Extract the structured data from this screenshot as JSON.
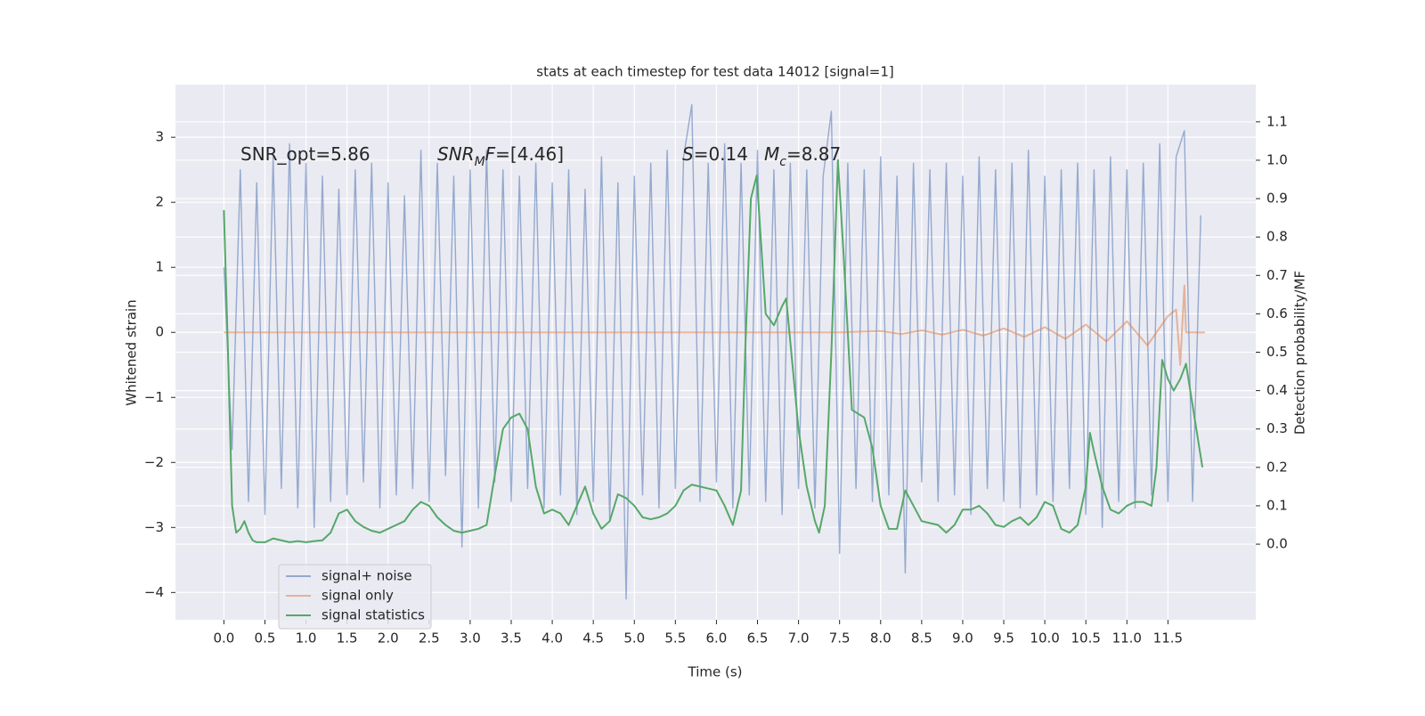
{
  "chart_data": {
    "type": "line",
    "title": "stats at each timestep for test data 14012 [signal=1]",
    "xlabel": "Time (s)",
    "ylabel": "Whitened strain",
    "y2label": "Detection probability/MF",
    "annotations": [
      [
        {
          "text": "SNR_opt=5.86"
        }
      ],
      [
        {
          "text": "SNR",
          "italic": true
        },
        {
          "text": "M",
          "italic": true,
          "sub": true
        },
        {
          "text": "F",
          "italic": true
        },
        {
          "text": "=[4.46]"
        }
      ],
      [
        {
          "text": "S",
          "italic": true
        },
        {
          "text": "=0.14"
        }
      ],
      [
        {
          "text": "M",
          "italic": true
        },
        {
          "text": "c",
          "italic": true,
          "sub": true
        },
        {
          "text": "=8.87"
        }
      ]
    ],
    "xlim": [
      -0.59,
      12.57
    ],
    "ylim": [
      -4.42,
      3.81
    ],
    "y2lim": [
      -0.197,
      1.197
    ],
    "xticks": [
      {
        "value": 0,
        "label": "0.0"
      },
      0.5,
      {
        "value": 1,
        "label": "1.0"
      },
      1.5,
      {
        "value": 2,
        "label": "2.0"
      },
      2.5,
      {
        "value": 3,
        "label": "3.0"
      },
      3.5,
      {
        "value": 4,
        "label": "4.0"
      },
      4.5,
      {
        "value": 5,
        "label": "5.0"
      },
      5.5,
      {
        "value": 6,
        "label": "6.0"
      },
      6.5,
      {
        "value": 7,
        "label": "7.0"
      },
      7.5,
      {
        "value": 8,
        "label": "8.0"
      },
      8.5,
      {
        "value": 9,
        "label": "9.0"
      },
      9.5,
      {
        "value": 10,
        "label": "10.0"
      },
      10.5,
      {
        "value": 11,
        "label": "11.0"
      },
      11.5
    ],
    "yticks": [
      {
        "value": -4,
        "label": "−4"
      },
      {
        "value": -3,
        "label": "−3"
      },
      {
        "value": -2,
        "label": "−2"
      },
      {
        "value": -1,
        "label": "−1"
      },
      0,
      1,
      2,
      3
    ],
    "y2ticks": [
      {
        "value": 0,
        "label": "0.0"
      },
      0.1,
      0.2,
      0.3,
      0.4,
      0.5,
      0.6,
      0.7,
      0.8,
      0.9,
      {
        "value": 1,
        "label": "1.0"
      },
      1.1
    ],
    "grid": true,
    "legend": "lower left",
    "series": [
      {
        "name": "signal+ noise",
        "color": "#4c72b0",
        "axis": "y",
        "x": [
          0.0,
          0.1,
          0.2,
          0.3,
          0.4,
          0.5,
          0.6,
          0.7,
          0.8,
          0.9,
          1.0,
          1.1,
          1.2,
          1.3,
          1.4,
          1.5,
          1.6,
          1.7,
          1.8,
          1.9,
          2.0,
          2.1,
          2.2,
          2.3,
          2.4,
          2.5,
          2.6,
          2.7,
          2.8,
          2.9,
          3.0,
          3.1,
          3.2,
          3.3,
          3.4,
          3.5,
          3.6,
          3.7,
          3.8,
          3.9,
          4.0,
          4.1,
          4.2,
          4.3,
          4.4,
          4.5,
          4.6,
          4.7,
          4.8,
          4.9,
          5.0,
          5.1,
          5.2,
          5.3,
          5.4,
          5.5,
          5.6,
          5.7,
          5.8,
          5.9,
          6.0,
          6.1,
          6.2,
          6.3,
          6.4,
          6.5,
          6.6,
          6.7,
          6.8,
          6.9,
          7.0,
          7.1,
          7.2,
          7.3,
          7.4,
          7.5,
          7.6,
          7.7,
          7.8,
          7.9,
          8.0,
          8.1,
          8.2,
          8.3,
          8.4,
          8.5,
          8.6,
          8.7,
          8.8,
          8.9,
          9.0,
          9.1,
          9.2,
          9.3,
          9.4,
          9.5,
          9.6,
          9.7,
          9.8,
          9.9,
          10.0,
          10.1,
          10.2,
          10.3,
          10.4,
          10.5,
          10.6,
          10.7,
          10.8,
          10.9,
          11.0,
          11.1,
          11.2,
          11.3,
          11.4,
          11.5,
          11.6,
          11.7,
          11.8,
          11.9
        ],
        "values": [
          1.0,
          -1.8,
          2.5,
          -2.6,
          2.3,
          -2.8,
          2.7,
          -2.4,
          2.9,
          -2.7,
          2.6,
          -3.0,
          2.4,
          -2.6,
          2.2,
          -2.5,
          2.5,
          -2.3,
          2.6,
          -2.7,
          2.3,
          -2.5,
          2.1,
          -2.4,
          2.8,
          -2.6,
          2.6,
          -2.2,
          2.4,
          -3.3,
          2.5,
          -2.7,
          2.8,
          -2.3,
          2.5,
          -2.6,
          2.4,
          -2.4,
          2.6,
          -2.7,
          2.3,
          -2.5,
          2.5,
          -2.8,
          2.2,
          -2.6,
          2.7,
          -2.9,
          2.3,
          -4.1,
          2.4,
          -2.5,
          2.6,
          -2.7,
          2.8,
          -2.4,
          2.7,
          3.5,
          -2.6,
          2.6,
          -2.3,
          2.9,
          -2.7,
          2.6,
          -2.5,
          2.8,
          -2.6,
          2.5,
          -2.8,
          2.6,
          -2.4,
          2.5,
          -2.7,
          2.4,
          3.4,
          -3.4,
          2.6,
          -2.4,
          2.5,
          -2.6,
          2.7,
          -2.5,
          2.4,
          -3.7,
          2.6,
          -2.3,
          2.5,
          -2.6,
          2.6,
          -2.5,
          2.4,
          -2.8,
          2.7,
          -2.4,
          2.5,
          -2.6,
          2.6,
          -2.7,
          2.8,
          -2.5,
          2.4,
          -2.6,
          2.5,
          -2.4,
          2.6,
          -2.8,
          2.5,
          -3.0,
          2.7,
          -2.6,
          2.5,
          -2.7,
          2.6,
          -2.5,
          2.9,
          -2.6,
          2.7,
          3.1,
          -2.6,
          1.8
        ]
      },
      {
        "name": "signal only",
        "color": "#dd8452",
        "axis": "y",
        "x": [
          0.0,
          7.5,
          8.0,
          8.25,
          8.5,
          8.75,
          9.0,
          9.25,
          9.5,
          9.75,
          10.0,
          10.25,
          10.5,
          10.75,
          11.0,
          11.25,
          11.5,
          11.6,
          11.65,
          11.7,
          11.72,
          11.95
        ],
        "values": [
          0,
          0,
          0.02,
          -0.025,
          0.03,
          -0.035,
          0.04,
          -0.05,
          0.06,
          -0.07,
          0.08,
          -0.1,
          0.12,
          -0.14,
          0.17,
          -0.2,
          0.25,
          0.35,
          -0.5,
          0.72,
          0,
          0
        ]
      },
      {
        "name": "signal statistics",
        "color": "#55a868",
        "axis": "y2",
        "x": [
          0.0,
          0.05,
          0.1,
          0.15,
          0.2,
          0.25,
          0.3,
          0.35,
          0.4,
          0.5,
          0.6,
          0.7,
          0.8,
          0.9,
          1.0,
          1.1,
          1.2,
          1.3,
          1.4,
          1.5,
          1.6,
          1.7,
          1.8,
          1.9,
          2.0,
          2.1,
          2.2,
          2.3,
          2.4,
          2.5,
          2.6,
          2.7,
          2.8,
          2.9,
          3.0,
          3.1,
          3.2,
          3.3,
          3.4,
          3.5,
          3.6,
          3.7,
          3.8,
          3.9,
          4.0,
          4.1,
          4.2,
          4.3,
          4.4,
          4.5,
          4.6,
          4.7,
          4.8,
          4.9,
          5.0,
          5.1,
          5.2,
          5.3,
          5.4,
          5.5,
          5.6,
          5.7,
          5.8,
          5.9,
          6.0,
          6.1,
          6.2,
          6.3,
          6.35,
          6.42,
          6.49,
          6.6,
          6.7,
          6.8,
          6.85,
          7.0,
          7.1,
          7.2,
          7.25,
          7.32,
          7.4,
          7.48,
          7.55,
          7.65,
          7.8,
          7.9,
          8.0,
          8.1,
          8.2,
          8.3,
          8.4,
          8.5,
          8.6,
          8.7,
          8.8,
          8.9,
          9.0,
          9.1,
          9.2,
          9.3,
          9.4,
          9.5,
          9.6,
          9.7,
          9.8,
          9.9,
          10.0,
          10.1,
          10.2,
          10.3,
          10.4,
          10.5,
          10.55,
          10.6,
          10.7,
          10.8,
          10.9,
          11.0,
          11.1,
          11.2,
          11.3,
          11.36,
          11.43,
          11.5,
          11.57,
          11.65,
          11.72,
          11.92
        ],
        "values": [
          0.87,
          0.5,
          0.1,
          0.03,
          0.04,
          0.06,
          0.03,
          0.01,
          0.005,
          0.005,
          0.015,
          0.01,
          0.005,
          0.008,
          0.005,
          0.008,
          0.01,
          0.03,
          0.08,
          0.09,
          0.06,
          0.045,
          0.035,
          0.03,
          0.04,
          0.05,
          0.06,
          0.09,
          0.11,
          0.1,
          0.07,
          0.05,
          0.035,
          0.03,
          0.035,
          0.04,
          0.05,
          0.18,
          0.3,
          0.33,
          0.34,
          0.3,
          0.15,
          0.08,
          0.09,
          0.08,
          0.05,
          0.1,
          0.15,
          0.08,
          0.04,
          0.06,
          0.13,
          0.12,
          0.1,
          0.07,
          0.065,
          0.07,
          0.08,
          0.1,
          0.14,
          0.155,
          0.15,
          0.145,
          0.14,
          0.1,
          0.05,
          0.14,
          0.5,
          0.9,
          0.96,
          0.6,
          0.57,
          0.62,
          0.64,
          0.3,
          0.15,
          0.06,
          0.03,
          0.1,
          0.5,
          1.0,
          0.75,
          0.35,
          0.33,
          0.25,
          0.1,
          0.04,
          0.04,
          0.14,
          0.1,
          0.06,
          0.055,
          0.05,
          0.03,
          0.05,
          0.09,
          0.09,
          0.1,
          0.08,
          0.05,
          0.045,
          0.06,
          0.07,
          0.05,
          0.07,
          0.11,
          0.1,
          0.04,
          0.03,
          0.05,
          0.15,
          0.29,
          0.24,
          0.15,
          0.09,
          0.08,
          0.1,
          0.11,
          0.11,
          0.1,
          0.2,
          0.48,
          0.43,
          0.4,
          0.43,
          0.47,
          0.2
        ]
      }
    ]
  }
}
